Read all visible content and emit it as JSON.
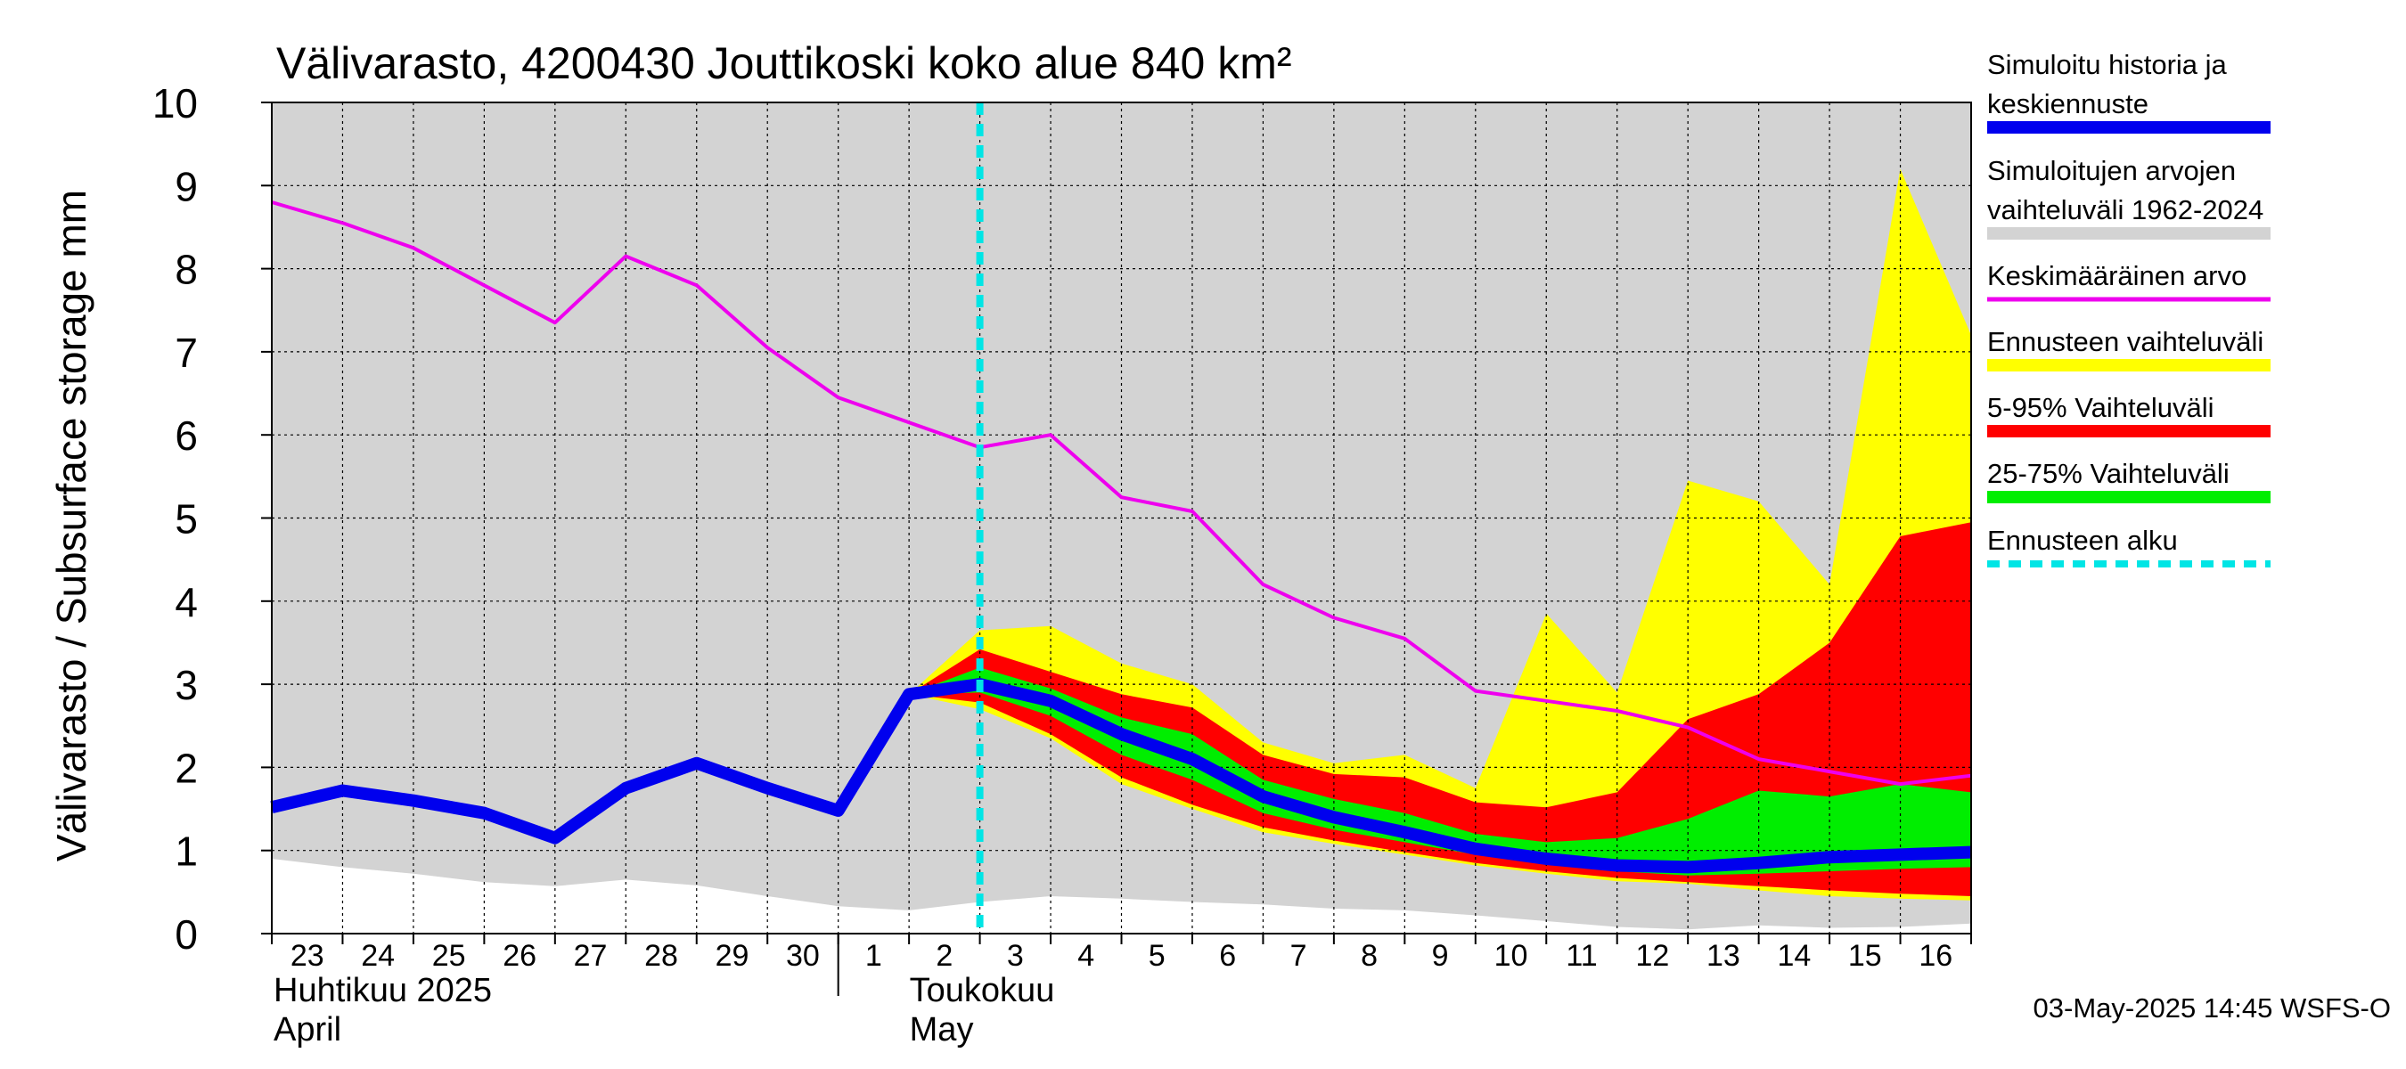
{
  "chart_data": {
    "type": "area",
    "title": "Välivarasto, 4200430 Jouttikoski koko alue 840 km²",
    "ylabel": "Välivarasto / Subsurface storage  mm",
    "ylim": [
      0,
      10
    ],
    "yticks": [
      "0",
      "1",
      "2",
      "3",
      "4",
      "5",
      "6",
      "7",
      "8",
      "9",
      "10"
    ],
    "grid": true,
    "legend_position": "right",
    "x_start": "2025-04-23",
    "x_end": "2025-05-17",
    "x_tick_labels": [
      "23",
      "24",
      "25",
      "26",
      "27",
      "28",
      "29",
      "30",
      "1",
      "2",
      "3",
      "4",
      "5",
      "6",
      "7",
      "8",
      "9",
      "10",
      "11",
      "12",
      "13",
      "14",
      "15",
      "16"
    ],
    "month_labels": [
      {
        "fi": "Huhtikuu  2025",
        "en": "April"
      },
      {
        "fi": "Toukokuu",
        "en": "May"
      }
    ],
    "forecast_start": "2025-05-03",
    "timestamp": "03-May-2025 14:45 WSFS-O",
    "colors": {
      "history_range": "#d3d3d3",
      "forecast_range": "#ffff00",
      "p5_95": "#ff0000",
      "p25_75": "#00ee00",
      "simulated": "#0000ee",
      "mean": "#ee00ee",
      "forecast_start": "#00e5e5"
    },
    "series": [
      {
        "name": "Simuloitu historia ja keskiennuste",
        "color": "#0000ee",
        "x": [
          "2025-04-23",
          "2025-04-24",
          "2025-04-25",
          "2025-04-26",
          "2025-04-27",
          "2025-04-28",
          "2025-04-29",
          "2025-04-30",
          "2025-05-01",
          "2025-05-02",
          "2025-05-03",
          "2025-05-04",
          "2025-05-05",
          "2025-05-06",
          "2025-05-07",
          "2025-05-08",
          "2025-05-09",
          "2025-05-10",
          "2025-05-11",
          "2025-05-12",
          "2025-05-13",
          "2025-05-14",
          "2025-05-15",
          "2025-05-16",
          "2025-05-17"
        ],
        "values": [
          1.52,
          1.72,
          1.6,
          1.45,
          1.15,
          1.75,
          2.05,
          1.75,
          1.48,
          2.88,
          3.0,
          2.8,
          2.4,
          2.1,
          1.65,
          1.4,
          1.22,
          1.02,
          0.9,
          0.82,
          0.8,
          0.85,
          0.92,
          0.95,
          0.98
        ]
      },
      {
        "name": "Keskimääräinen arvo",
        "color": "#ee00ee",
        "x": [
          "2025-04-23",
          "2025-04-24",
          "2025-04-25",
          "2025-04-26",
          "2025-04-27",
          "2025-04-28",
          "2025-04-29",
          "2025-04-30",
          "2025-05-01",
          "2025-05-02",
          "2025-05-03",
          "2025-05-04",
          "2025-05-05",
          "2025-05-06",
          "2025-05-07",
          "2025-05-08",
          "2025-05-09",
          "2025-05-10",
          "2025-05-11",
          "2025-05-12",
          "2025-05-13",
          "2025-05-14",
          "2025-05-15",
          "2025-05-16",
          "2025-05-17"
        ],
        "values": [
          8.8,
          8.55,
          8.25,
          7.8,
          7.35,
          8.15,
          7.8,
          7.05,
          6.45,
          6.15,
          5.85,
          6.0,
          5.25,
          5.08,
          4.2,
          3.8,
          3.55,
          2.92,
          2.8,
          2.68,
          2.48,
          2.1,
          1.95,
          1.8,
          1.9
        ]
      }
    ],
    "bands": [
      {
        "name": "Simuloitujen arvojen vaihteluväli 1962-2024",
        "color": "#d3d3d3",
        "x": [
          "2025-04-23",
          "2025-04-24",
          "2025-04-25",
          "2025-04-26",
          "2025-04-27",
          "2025-04-28",
          "2025-04-29",
          "2025-04-30",
          "2025-05-01",
          "2025-05-02",
          "2025-05-03",
          "2025-05-04",
          "2025-05-05",
          "2025-05-06",
          "2025-05-07",
          "2025-05-08",
          "2025-05-09",
          "2025-05-10",
          "2025-05-11",
          "2025-05-12",
          "2025-05-13",
          "2025-05-14",
          "2025-05-15",
          "2025-05-16",
          "2025-05-17"
        ],
        "lower": [
          0.9,
          0.8,
          0.72,
          0.62,
          0.57,
          0.65,
          0.58,
          0.45,
          0.33,
          0.28,
          0.38,
          0.45,
          0.42,
          0.38,
          0.35,
          0.3,
          0.28,
          0.22,
          0.15,
          0.08,
          0.05,
          0.1,
          0.07,
          0.08,
          0.12
        ],
        "upper": [
          10,
          10,
          10,
          10,
          10,
          10,
          10,
          10,
          10,
          10,
          10,
          10,
          10,
          10,
          10,
          10,
          10,
          10,
          10,
          10,
          10,
          10,
          10,
          10,
          10
        ]
      },
      {
        "name": "Ennusteen vaihteluväli",
        "color": "#ffff00",
        "x": [
          "2025-05-02",
          "2025-05-03",
          "2025-05-04",
          "2025-05-05",
          "2025-05-06",
          "2025-05-07",
          "2025-05-08",
          "2025-05-09",
          "2025-05-10",
          "2025-05-11",
          "2025-05-12",
          "2025-05-13",
          "2025-05-14",
          "2025-05-15",
          "2025-05-16",
          "2025-05-17"
        ],
        "lower": [
          2.88,
          2.7,
          2.35,
          1.8,
          1.5,
          1.22,
          1.08,
          0.95,
          0.82,
          0.72,
          0.63,
          0.6,
          0.52,
          0.45,
          0.42,
          0.4
        ],
        "upper": [
          2.88,
          3.65,
          3.7,
          3.25,
          3.0,
          2.3,
          2.05,
          2.15,
          1.75,
          3.85,
          2.9,
          5.45,
          5.2,
          4.2,
          9.2,
          7.2
        ]
      },
      {
        "name": "5-95% Vaihteluväli",
        "color": "#ff0000",
        "x": [
          "2025-05-02",
          "2025-05-03",
          "2025-05-04",
          "2025-05-05",
          "2025-05-06",
          "2025-05-07",
          "2025-05-08",
          "2025-05-09",
          "2025-05-10",
          "2025-05-11",
          "2025-05-12",
          "2025-05-13",
          "2025-05-14",
          "2025-05-15",
          "2025-05-16",
          "2025-05-17"
        ],
        "lower": [
          2.88,
          2.78,
          2.4,
          1.88,
          1.55,
          1.28,
          1.12,
          0.98,
          0.85,
          0.75,
          0.67,
          0.62,
          0.57,
          0.52,
          0.48,
          0.45
        ],
        "upper": [
          2.88,
          3.42,
          3.15,
          2.88,
          2.72,
          2.15,
          1.92,
          1.88,
          1.58,
          1.52,
          1.7,
          2.58,
          2.88,
          3.5,
          4.78,
          4.95
        ]
      },
      {
        "name": "25-75% Vaihteluväli",
        "color": "#00ee00",
        "x": [
          "2025-05-02",
          "2025-05-03",
          "2025-05-04",
          "2025-05-05",
          "2025-05-06",
          "2025-05-07",
          "2025-05-08",
          "2025-05-09",
          "2025-05-10",
          "2025-05-11",
          "2025-05-12",
          "2025-05-13",
          "2025-05-14",
          "2025-05-15",
          "2025-05-16",
          "2025-05-17"
        ],
        "lower": [
          2.88,
          2.9,
          2.62,
          2.15,
          1.85,
          1.45,
          1.25,
          1.1,
          0.95,
          0.85,
          0.75,
          0.7,
          0.72,
          0.75,
          0.78,
          0.8
        ],
        "upper": [
          2.88,
          3.2,
          2.95,
          2.6,
          2.4,
          1.85,
          1.62,
          1.45,
          1.2,
          1.1,
          1.15,
          1.38,
          1.72,
          1.65,
          1.8,
          1.7
        ]
      }
    ],
    "legend": [
      {
        "lines": [
          "Simuloitu historia ja",
          "keskiennuste"
        ],
        "color": "#0000ee",
        "style": "thick"
      },
      {
        "lines": [
          "Simuloitujen arvojen",
          "vaihteluväli 1962-2024"
        ],
        "color": "#d3d3d3",
        "style": "thick"
      },
      {
        "lines": [
          "Keskimääräinen arvo"
        ],
        "color": "#ee00ee",
        "style": "thin"
      },
      {
        "lines": [
          "Ennusteen vaihteluväli"
        ],
        "color": "#ffff00",
        "style": "thick"
      },
      {
        "lines": [
          "5-95% Vaihteluväli"
        ],
        "color": "#ff0000",
        "style": "thick"
      },
      {
        "lines": [
          "25-75% Vaihteluväli"
        ],
        "color": "#00ee00",
        "style": "thick"
      },
      {
        "lines": [
          "Ennusteen alku"
        ],
        "color": "#00e5e5",
        "style": "dashed"
      }
    ]
  }
}
